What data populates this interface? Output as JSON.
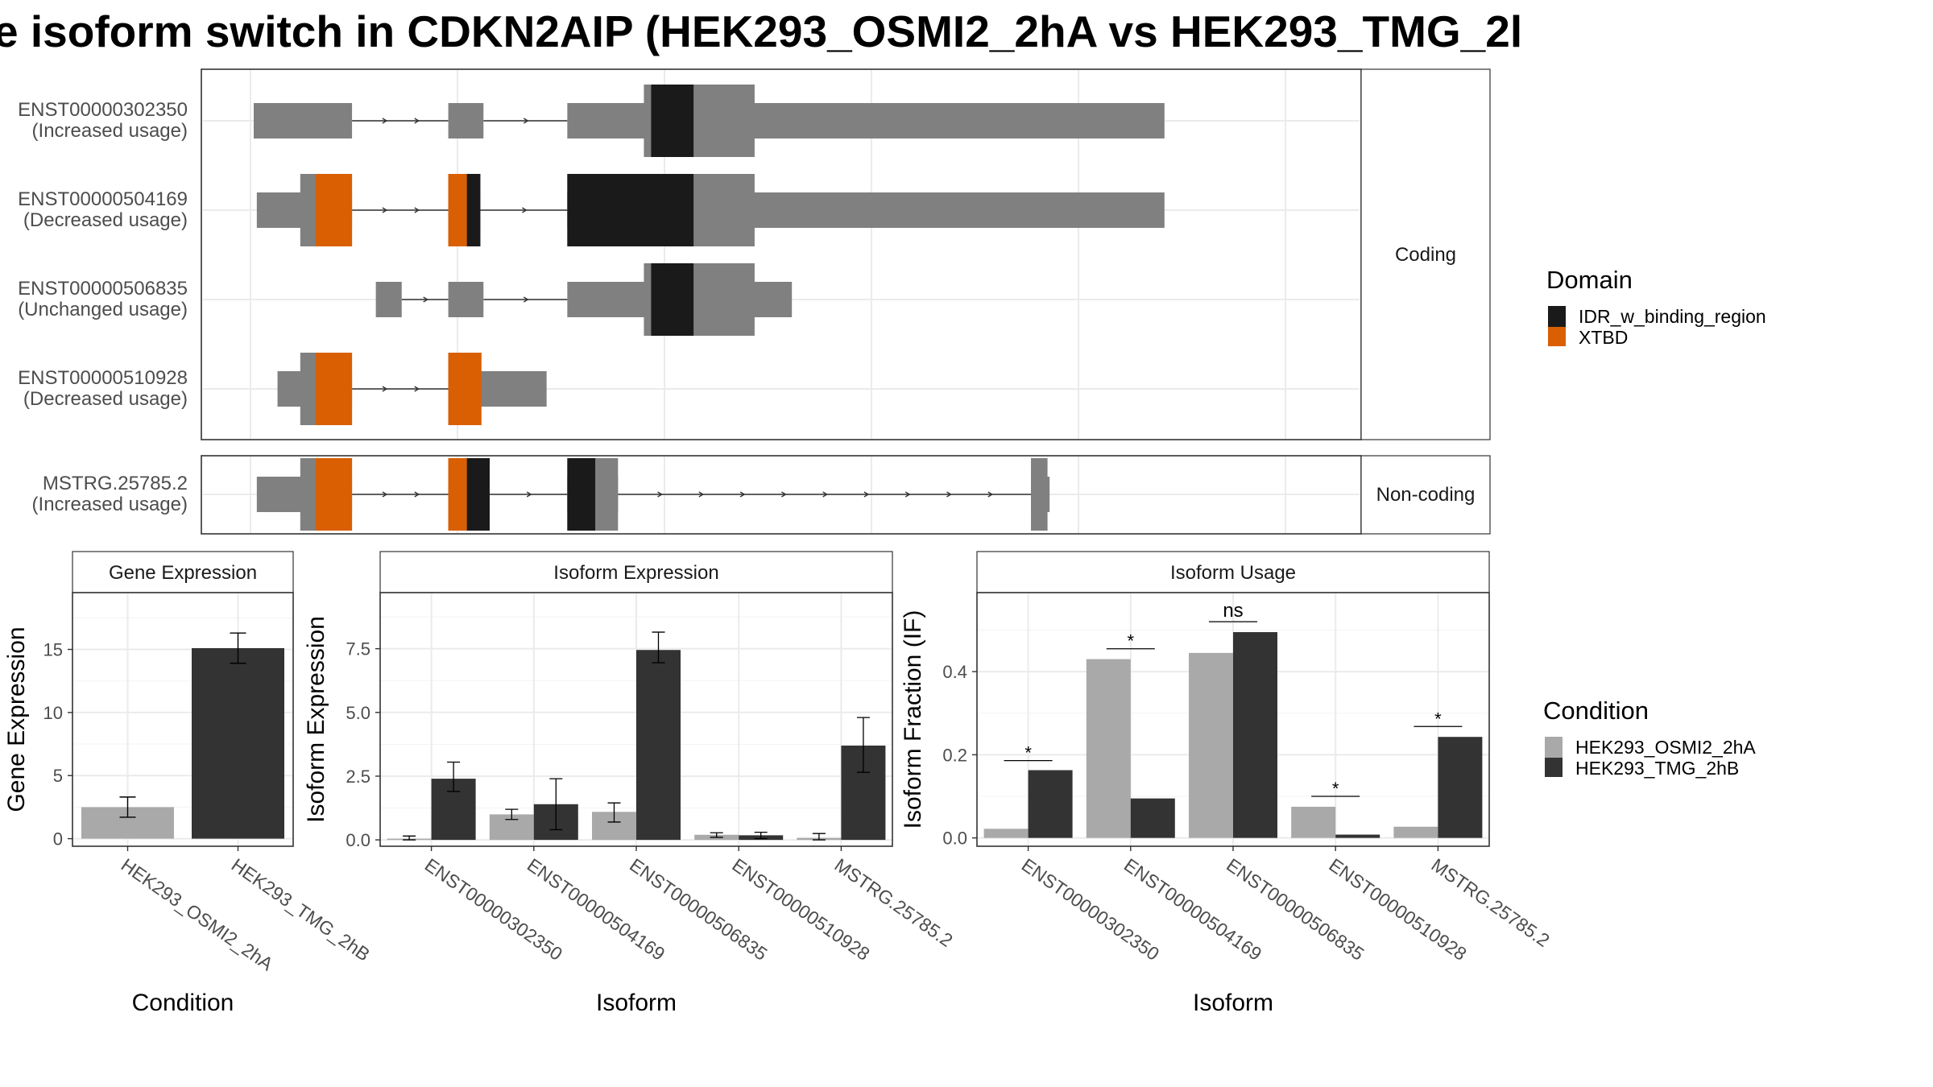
{
  "title": "e isoform switch in CDKN2AIP (HEK293_OSMI2_2hA vs HEK293_TMG_2l",
  "colors": {
    "exon": "#808080",
    "IDR_w_binding_region": "#1a1a1a",
    "XTBD": "#d95f02",
    "cond1": "#a9a9a9",
    "cond2": "#333333",
    "panel_border": "#333333",
    "strip_fill": "#ffffff",
    "grid": "#ebebeb"
  },
  "structure": {
    "facets": [
      "Coding",
      "Non-coding"
    ],
    "genome_range": [
      0,
      1000
    ],
    "transcripts": [
      {
        "id": "ENST00000302350",
        "usage": "(Increased usage)",
        "facet": "Coding",
        "exons": [
          [
            0,
            95
          ],
          [
            188,
            222
          ],
          [
            303,
            880
          ]
        ],
        "domains": [
          [
            384,
            425,
            "IDR_w_binding_region"
          ]
        ],
        "cds_thick": [
          [
            377,
            484
          ]
        ]
      },
      {
        "id": "ENST00000504169",
        "usage": "(Decreased usage)",
        "facet": "Coding",
        "exons": [
          [
            3,
            95
          ],
          [
            188,
            219
          ],
          [
            303,
            880
          ]
        ],
        "domains": [
          [
            60,
            95,
            "XTBD"
          ],
          [
            188,
            206,
            "XTBD"
          ],
          [
            206,
            219,
            "IDR_w_binding_region"
          ],
          [
            303,
            425,
            "IDR_w_binding_region"
          ]
        ],
        "cds_thick": [
          [
            45,
            95
          ],
          [
            188,
            219
          ],
          [
            303,
            484
          ]
        ]
      },
      {
        "id": "ENST00000506835",
        "usage": "(Unchanged usage)",
        "facet": "Coding",
        "exons": [
          [
            118,
            143
          ],
          [
            188,
            222
          ],
          [
            303,
            520
          ]
        ],
        "domains": [
          [
            384,
            425,
            "IDR_w_binding_region"
          ]
        ],
        "cds_thick": [
          [
            377,
            484
          ]
        ]
      },
      {
        "id": "ENST00000510928",
        "usage": "(Decreased usage)",
        "facet": "Coding",
        "exons": [
          [
            23,
            95
          ],
          [
            188,
            283
          ]
        ],
        "domains": [
          [
            60,
            95,
            "XTBD"
          ],
          [
            188,
            220,
            "XTBD"
          ]
        ],
        "cds_thick": [
          [
            45,
            95
          ],
          [
            188,
            220
          ]
        ]
      },
      {
        "id": "MSTRG.25785.2",
        "usage": "(Increased usage)",
        "facet": "Non-coding",
        "exons": [
          [
            3,
            95
          ],
          [
            188,
            228
          ],
          [
            303,
            352
          ],
          [
            751,
            769
          ]
        ],
        "domains": [
          [
            60,
            95,
            "XTBD"
          ],
          [
            188,
            206,
            "XTBD"
          ],
          [
            206,
            228,
            "IDR_w_binding_region"
          ],
          [
            303,
            330,
            "IDR_w_binding_region"
          ]
        ],
        "cds_thick": [
          [
            45,
            95
          ],
          [
            188,
            228
          ],
          [
            303,
            352
          ],
          [
            751,
            767
          ]
        ]
      }
    ],
    "domain_legend": {
      "title": "Domain",
      "items": [
        {
          "label": "IDR_w_binding_region",
          "color": "#1a1a1a"
        },
        {
          "label": "XTBD",
          "color": "#d95f02"
        }
      ]
    }
  },
  "chart_data": [
    {
      "type": "bar",
      "title": "Gene Expression",
      "xlabel": "Condition",
      "ylabel": "Gene Expression",
      "ylim": [
        -0.6,
        19.5
      ],
      "yticks": [
        0,
        5,
        10,
        15
      ],
      "categories": [
        "HEK293_OSMI2_2hA",
        "HEK293_TMG_2hB"
      ],
      "values": [
        2.5,
        15.1
      ],
      "errors": [
        [
          1.7,
          3.3
        ],
        [
          13.9,
          16.3
        ]
      ],
      "bar_colors": [
        "#a9a9a9",
        "#333333"
      ]
    },
    {
      "type": "bar",
      "title": "Isoform Expression",
      "xlabel": "Isoform",
      "ylabel": "Isoform Expression",
      "ylim": [
        -0.25,
        9.7
      ],
      "yticks": [
        0.0,
        2.5,
        5.0,
        7.5
      ],
      "ytick_labels": [
        "0.0",
        "2.5",
        "5.0",
        "7.5"
      ],
      "categories": [
        "ENST00000302350",
        "ENST00000504169",
        "ENST00000506835",
        "ENST00000510928",
        "MSTRG.25785.2"
      ],
      "series": [
        {
          "name": "HEK293_OSMI2_2hA",
          "values": [
            0.05,
            1.0,
            1.1,
            0.2,
            0.08
          ],
          "errors": [
            [
              0.0,
              0.15
            ],
            [
              0.8,
              1.2
            ],
            [
              0.7,
              1.45
            ],
            [
              0.1,
              0.28
            ],
            [
              0.0,
              0.25
            ]
          ]
        },
        {
          "name": "HEK293_TMG_2hB",
          "values": [
            2.4,
            1.4,
            7.45,
            0.18,
            3.7
          ],
          "errors": [
            [
              1.9,
              3.05
            ],
            [
              0.4,
              2.4
            ],
            [
              6.95,
              8.15
            ],
            [
              0.05,
              0.3
            ],
            [
              2.65,
              4.8
            ]
          ]
        }
      ]
    },
    {
      "type": "bar",
      "title": "Isoform Usage",
      "xlabel": "Isoform",
      "ylabel": "Isoform Fraction (IF)",
      "ylim": [
        -0.02,
        0.59
      ],
      "yticks": [
        0.0,
        0.2,
        0.4
      ],
      "ytick_labels": [
        "0.0",
        "0.2",
        "0.4"
      ],
      "categories": [
        "ENST00000302350",
        "ENST00000504169",
        "ENST00000506835",
        "ENST00000510928",
        "MSTRG.25785.2"
      ],
      "series": [
        {
          "name": "HEK293_OSMI2_2hA",
          "values": [
            0.022,
            0.43,
            0.445,
            0.075,
            0.027
          ]
        },
        {
          "name": "HEK293_TMG_2hB",
          "values": [
            0.163,
            0.095,
            0.495,
            0.008,
            0.243
          ]
        }
      ],
      "significance": [
        {
          "label": "*",
          "y": 0.186
        },
        {
          "label": "*",
          "y": 0.455
        },
        {
          "label": "ns",
          "y": 0.52
        },
        {
          "label": "*",
          "y": 0.1
        },
        {
          "label": "*",
          "y": 0.268
        }
      ]
    }
  ],
  "condition_legend": {
    "title": "Condition",
    "items": [
      {
        "label": "HEK293_OSMI2_2hA",
        "color": "#a9a9a9"
      },
      {
        "label": "HEK293_TMG_2hB",
        "color": "#333333"
      }
    ]
  }
}
